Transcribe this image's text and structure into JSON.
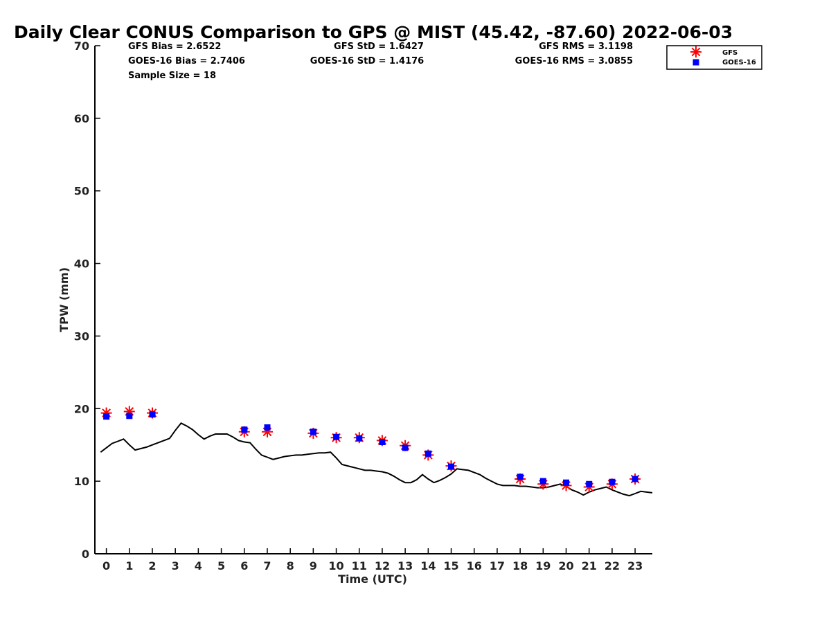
{
  "chart_data": {
    "type": "scatter",
    "title": "Daily Clear CONUS Comparison to GPS @ MIST (45.42, -87.60) 2022-06-03",
    "xlabel": "Time (UTC)",
    "ylabel": "TPW (mm)",
    "xlim": [
      -0.5,
      23.75
    ],
    "ylim": [
      0,
      70
    ],
    "x_ticks": [
      "0",
      "1",
      "2",
      "3",
      "4",
      "5",
      "6",
      "7",
      "8",
      "9",
      "10",
      "11",
      "12",
      "13",
      "14",
      "15",
      "16",
      "17",
      "18",
      "19",
      "20",
      "21",
      "22",
      "23"
    ],
    "y_ticks": [
      "0",
      "10",
      "20",
      "30",
      "40",
      "50",
      "60",
      "70"
    ],
    "grid": false,
    "legend_position": "top-right",
    "stats": {
      "gfs_bias": "GFS Bias = 2.6522",
      "goes_bias": "GOES-16 Bias = 2.7406",
      "sample_size": "Sample Size = 18",
      "gfs_std": "GFS StD = 1.6427",
      "goes_std": "GOES-16 StD = 1.4176",
      "gfs_rms": "GFS RMS = 3.1198",
      "goes_rms": "GOES-16 RMS = 3.0855"
    },
    "gps_line": {
      "x": [
        -0.25,
        0,
        0.25,
        0.5,
        0.75,
        1,
        1.25,
        1.5,
        1.75,
        2,
        2.25,
        2.5,
        2.75,
        3,
        3.25,
        3.5,
        3.75,
        4,
        4.25,
        4.5,
        4.75,
        5,
        5.25,
        5.5,
        5.75,
        6,
        6.25,
        6.5,
        6.75,
        7,
        7.25,
        7.5,
        7.75,
        8,
        8.25,
        8.5,
        8.75,
        9,
        9.25,
        9.5,
        9.75,
        10,
        10.25,
        10.5,
        10.75,
        11,
        11.25,
        11.5,
        11.75,
        12,
        12.25,
        12.5,
        12.75,
        13,
        13.25,
        13.5,
        13.75,
        14,
        14.25,
        14.5,
        14.75,
        15,
        15.25,
        15.5,
        15.75,
        16,
        16.25,
        16.5,
        16.75,
        17,
        17.25,
        17.5,
        17.75,
        18,
        18.25,
        18.5,
        18.75,
        19,
        19.25,
        19.5,
        19.75,
        20,
        20.25,
        20.5,
        20.75,
        21,
        21.25,
        21.5,
        21.75,
        22,
        22.25,
        22.5,
        22.75,
        23,
        23.25,
        23.5,
        23.75
      ],
      "y": [
        14.0,
        14.6,
        15.2,
        15.5,
        15.8,
        15.0,
        14.3,
        14.5,
        14.7,
        15.0,
        15.3,
        15.6,
        15.9,
        17.0,
        18.0,
        17.6,
        17.1,
        16.4,
        15.8,
        16.2,
        16.5,
        16.5,
        16.5,
        16.1,
        15.6,
        15.4,
        15.3,
        14.4,
        13.6,
        13.3,
        13.0,
        13.2,
        13.4,
        13.5,
        13.6,
        13.6,
        13.7,
        13.8,
        13.9,
        13.9,
        14.0,
        13.2,
        12.3,
        12.1,
        11.9,
        11.7,
        11.5,
        11.5,
        11.4,
        11.3,
        11.1,
        10.7,
        10.2,
        9.8,
        9.8,
        10.2,
        10.9,
        10.3,
        9.8,
        10.1,
        10.5,
        11.0,
        11.7,
        11.6,
        11.5,
        11.2,
        10.9,
        10.4,
        10.0,
        9.6,
        9.4,
        9.4,
        9.4,
        9.3,
        9.3,
        9.2,
        9.1,
        9.1,
        9.2,
        9.4,
        9.6,
        9.3,
        8.8,
        8.5,
        8.1,
        8.5,
        8.8,
        9.0,
        9.2,
        8.8,
        8.5,
        8.2,
        8.0,
        8.3,
        8.6,
        8.5,
        8.4
      ]
    },
    "series": [
      {
        "name": "GFS",
        "color": "#ff0000",
        "marker": "asterisk",
        "x": [
          0,
          1,
          2,
          6,
          7,
          9,
          10,
          11,
          12,
          13,
          14,
          15,
          18,
          19,
          20,
          21,
          22,
          23
        ],
        "y": [
          19.4,
          19.6,
          19.4,
          16.8,
          16.8,
          16.6,
          16.0,
          16.0,
          15.6,
          14.9,
          13.6,
          12.1,
          10.3,
          9.6,
          9.4,
          9.2,
          9.6,
          10.3
        ]
      },
      {
        "name": "GOES-16",
        "color": "#0000ff",
        "marker": "square",
        "x": [
          0,
          1,
          2,
          6,
          7,
          9,
          10,
          11,
          12,
          13,
          14,
          15,
          18,
          19,
          20,
          21,
          22,
          23
        ],
        "y": [
          18.9,
          19.0,
          19.2,
          17.1,
          17.4,
          16.8,
          16.1,
          15.9,
          15.4,
          14.6,
          13.8,
          12.0,
          10.6,
          10.0,
          9.8,
          9.6,
          9.9,
          10.3
        ]
      }
    ]
  }
}
